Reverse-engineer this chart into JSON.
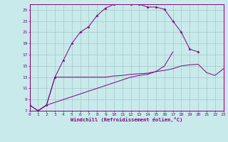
{
  "xlabel": "Windchill (Refroidissement éolien,°C)",
  "bg_color": "#c8eaea",
  "line_color": "#800080",
  "grid_color": "#a0c8c8",
  "x_ticks": [
    0,
    1,
    2,
    3,
    4,
    5,
    6,
    7,
    8,
    9,
    10,
    11,
    12,
    13,
    14,
    15,
    16,
    17,
    18,
    19,
    20,
    21,
    22,
    23
  ],
  "y_ticks": [
    7,
    9,
    11,
    13,
    15,
    17,
    19,
    21,
    23,
    25
  ],
  "xlim": [
    0,
    23
  ],
  "ylim": [
    7,
    26
  ],
  "line1_x": [
    0,
    1,
    2,
    3,
    4,
    5,
    6,
    7,
    8,
    9,
    10,
    11,
    12,
    13,
    14,
    15,
    16,
    17,
    18,
    19,
    20
  ],
  "line1_y": [
    8.0,
    7.0,
    8.0,
    13.0,
    16.0,
    19.0,
    21.0,
    22.0,
    24.0,
    25.3,
    26.0,
    26.2,
    26.0,
    26.0,
    25.5,
    25.5,
    25.1,
    23.0,
    21.0,
    18.0,
    17.5
  ],
  "line2_x": [
    1,
    2,
    3,
    4,
    5,
    6,
    7,
    8,
    9,
    10,
    11,
    12,
    13,
    14,
    15,
    16,
    17
  ],
  "line2_y": [
    7.0,
    8.0,
    13.0,
    13.0,
    13.0,
    13.0,
    13.0,
    13.0,
    13.0,
    13.2,
    13.3,
    13.5,
    13.6,
    13.7,
    14.0,
    15.0,
    17.5
  ],
  "line3_x": [
    0,
    1,
    2,
    3,
    4,
    5,
    6,
    7,
    8,
    9,
    10,
    11,
    12,
    13,
    14,
    15,
    16,
    17,
    18,
    19,
    20,
    21,
    22,
    23
  ],
  "line3_y": [
    8.0,
    7.0,
    8.0,
    8.5,
    9.0,
    9.5,
    10.0,
    10.5,
    11.0,
    11.5,
    12.0,
    12.5,
    13.0,
    13.3,
    13.5,
    14.0,
    14.2,
    14.5,
    15.0,
    15.2,
    15.3,
    13.8,
    13.3,
    14.5
  ]
}
